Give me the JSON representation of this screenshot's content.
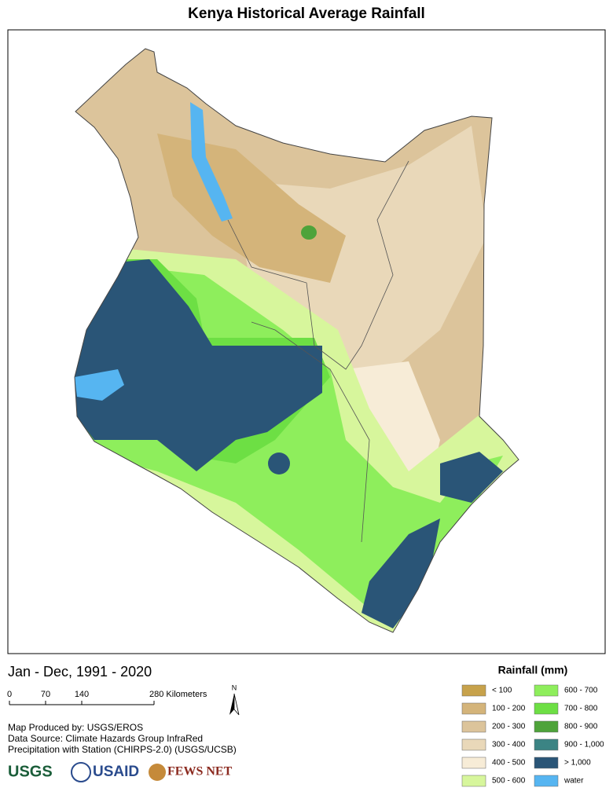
{
  "title": "Kenya Historical Average Rainfall",
  "period": "Jan - Dec, 1991 - 2020",
  "scale_bar": {
    "labels": [
      "0",
      "70",
      "140",
      "280 Kilometers"
    ]
  },
  "north": "N",
  "credits": [
    "Map Produced by: USGS/EROS",
    "Data Source: Climate Hazards Group InfraRed",
    "Precipitation with Station (CHIRPS-2.0) (USGS/UCSB)"
  ],
  "logos": [
    "USGS",
    "USAID",
    "FEWS NET"
  ],
  "legend": {
    "title": "Rainfall (mm)",
    "items": [
      {
        "label": "< 100",
        "color": "#c7a24b"
      },
      {
        "label": "100 - 200",
        "color": "#d4b47a"
      },
      {
        "label": "200 - 300",
        "color": "#dcc49b"
      },
      {
        "label": "300 - 400",
        "color": "#e9d8b9"
      },
      {
        "label": "400 - 500",
        "color": "#f7ecd7"
      },
      {
        "label": "500 - 600",
        "color": "#d7f69c"
      },
      {
        "label": "600 - 700",
        "color": "#8eee5c"
      },
      {
        "label": "700 - 800",
        "color": "#6ddf44"
      },
      {
        "label": "800 - 900",
        "color": "#4ea33a"
      },
      {
        "label": "900 - 1,000",
        "color": "#3b8484"
      },
      {
        "label": "> 1,000",
        "color": "#2a5577"
      },
      {
        "label": "water",
        "color": "#56b5f1"
      }
    ]
  }
}
